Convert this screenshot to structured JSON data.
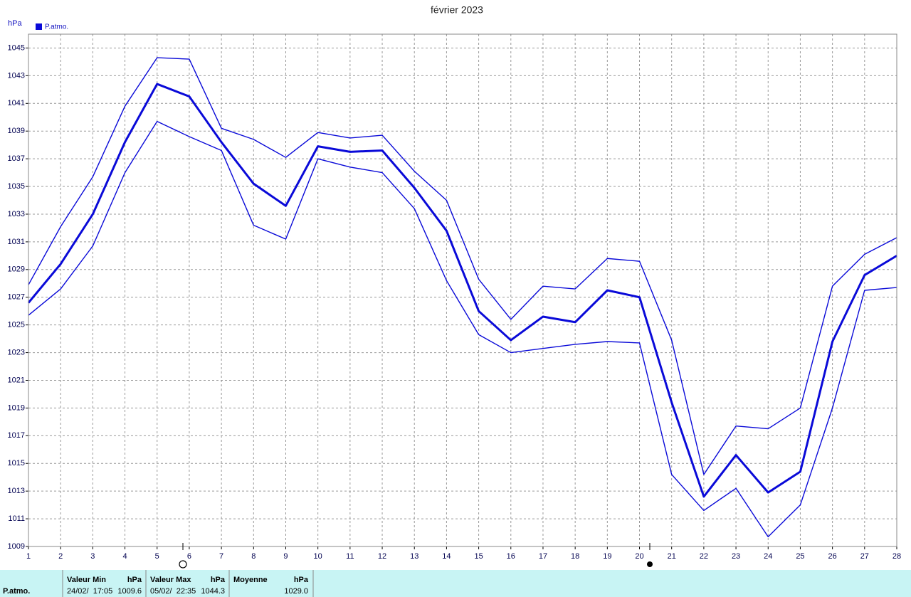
{
  "chart_data": {
    "type": "line",
    "title": "février 2023",
    "y_label": "hPa",
    "x": [
      1,
      2,
      3,
      4,
      5,
      6,
      7,
      8,
      9,
      10,
      11,
      12,
      13,
      14,
      15,
      16,
      17,
      18,
      19,
      20,
      21,
      22,
      23,
      24,
      25,
      26,
      27,
      28
    ],
    "xlim": [
      1,
      28
    ],
    "xticks": [
      1,
      2,
      3,
      4,
      5,
      6,
      7,
      8,
      9,
      10,
      11,
      12,
      13,
      14,
      15,
      16,
      17,
      18,
      19,
      20,
      21,
      22,
      23,
      24,
      25,
      26,
      27,
      28
    ],
    "ylim": [
      1009,
      1046
    ],
    "yticks": [
      1009,
      1011,
      1013,
      1015,
      1017,
      1019,
      1021,
      1023,
      1025,
      1027,
      1029,
      1031,
      1033,
      1035,
      1037,
      1039,
      1041,
      1043,
      1045
    ],
    "grid": true,
    "series": [
      {
        "name": "P.atmo.",
        "color": "#0a0ad8",
        "width": 3,
        "values": [
          1026.6,
          1029.4,
          1033.0,
          1038.2,
          1042.4,
          1041.5,
          1038.2,
          1035.2,
          1033.6,
          1037.9,
          1037.5,
          1037.6,
          1034.9,
          1031.8,
          1026.0,
          1023.9,
          1025.6,
          1025.2,
          1027.5,
          1027.0,
          1019.4,
          1012.6,
          1015.6,
          1012.9,
          1014.4,
          1023.8,
          1028.6,
          1030.0
        ]
      },
      {
        "color": "#0a0ad8",
        "width": 1.4,
        "values": [
          1027.9,
          1032.1,
          1035.7,
          1040.8,
          1044.3,
          1044.2,
          1039.2,
          1038.4,
          1037.1,
          1038.9,
          1038.5,
          1038.7,
          1036.1,
          1034.0,
          1028.3,
          1025.4,
          1027.8,
          1027.6,
          1029.8,
          1029.6,
          1023.9,
          1014.2,
          1017.7,
          1017.5,
          1019.0,
          1027.8,
          1030.1,
          1031.3
        ]
      },
      {
        "color": "#0a0ad8",
        "width": 1.4,
        "values": [
          1025.7,
          1027.6,
          1030.7,
          1036.0,
          1039.7,
          1038.6,
          1037.6,
          1032.2,
          1031.2,
          1037.0,
          1036.4,
          1036.0,
          1033.4,
          1028.2,
          1024.3,
          1023.0,
          1023.3,
          1023.6,
          1023.8,
          1023.7,
          1014.2,
          1011.6,
          1013.2,
          1009.7,
          1012.0,
          1019.0,
          1027.5,
          1027.7
        ]
      }
    ]
  },
  "summary": {
    "row_label": "P.atmo.",
    "columns": [
      {
        "header": "Valeur Min",
        "unit": "hPa",
        "date": "24/02/  17:05",
        "value": "1009.6"
      },
      {
        "header": "Valeur Max",
        "unit": "hPa",
        "date": "05/02/  22:35",
        "value": "1044.3"
      },
      {
        "header": "Moyenne",
        "unit": "hPa",
        "value": "1029.0"
      }
    ]
  }
}
